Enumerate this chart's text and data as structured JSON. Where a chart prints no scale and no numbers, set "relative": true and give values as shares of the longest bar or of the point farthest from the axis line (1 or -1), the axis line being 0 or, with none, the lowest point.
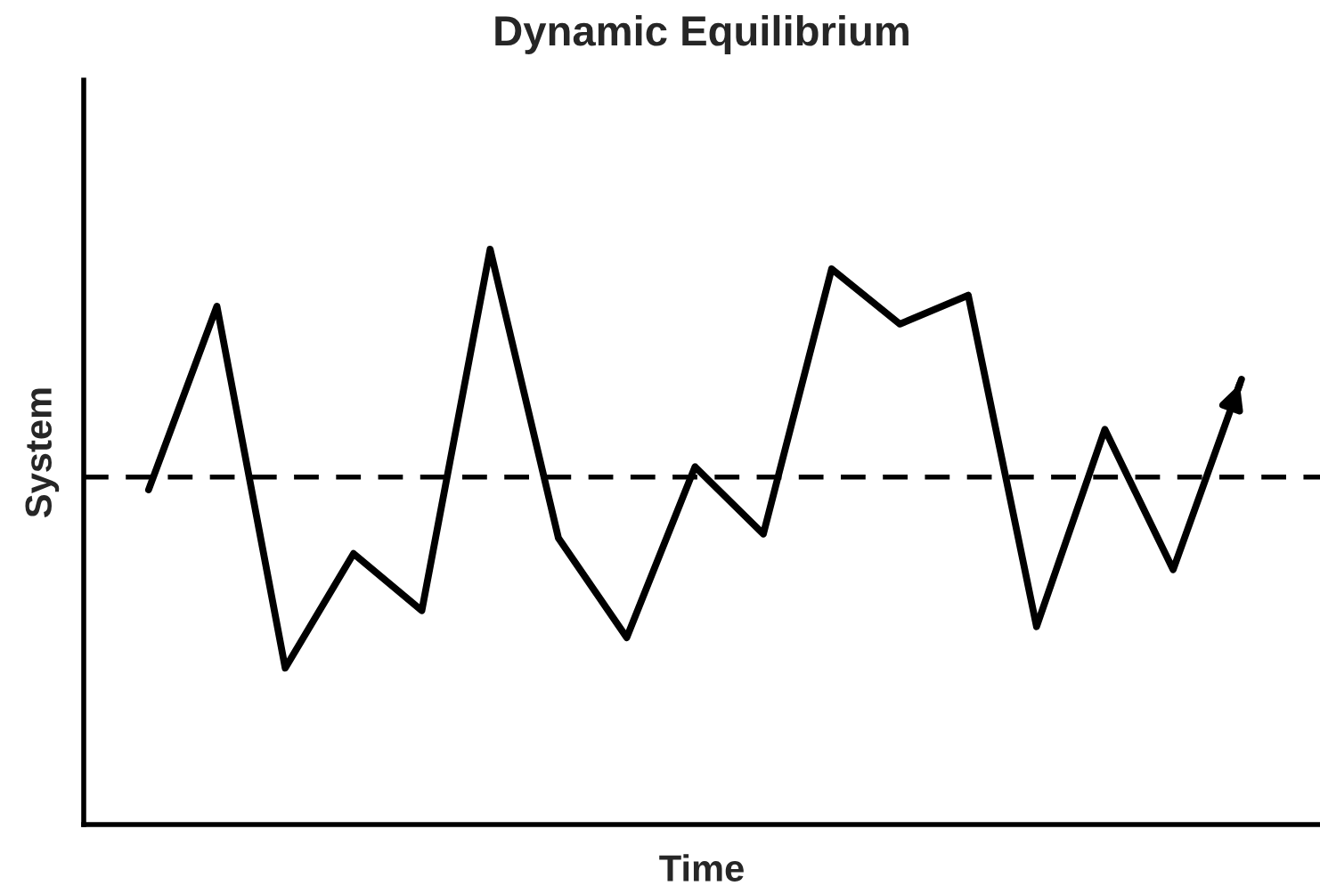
{
  "chart_data": {
    "type": "line",
    "title": "Dynamic Equilibrium",
    "xlabel": "Time",
    "ylabel": "System",
    "relative": true,
    "categories": [
      null,
      null,
      null,
      null,
      null,
      null,
      null,
      null,
      null,
      null,
      null,
      null,
      null,
      null,
      null,
      null,
      null
    ],
    "series": [
      {
        "color": "#000000",
        "values": [
          0.582,
          0.901,
          0.272,
          0.471,
          0.372,
          1,
          0.498,
          0.325,
          0.622,
          0.505,
          0.966,
          0.87,
          0.92,
          0.344,
          0.687,
          0.443,
          0.774
        ]
      }
    ],
    "ref_lines": [
      {
        "axis": "y",
        "value": 0.604,
        "color": "#000000",
        "line_style": "dashed"
      }
    ],
    "legend": false,
    "marker": "none",
    "line_style": "solid"
  }
}
